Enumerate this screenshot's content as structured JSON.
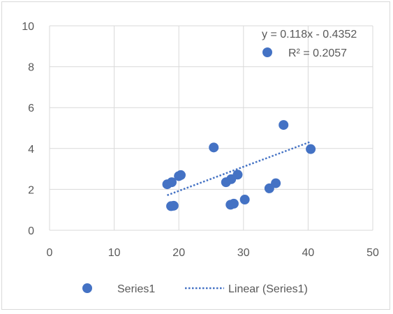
{
  "chart_data": {
    "type": "scatter",
    "title": "",
    "xlabel": "",
    "ylabel": "",
    "xlim": [
      0,
      50
    ],
    "ylim": [
      0,
      10
    ],
    "xticks": [
      0,
      10,
      20,
      30,
      40,
      50
    ],
    "yticks": [
      0,
      2,
      4,
      6,
      8,
      10
    ],
    "grid": true,
    "legend_position": "bottom",
    "series": [
      {
        "name": "Series1",
        "color": "#4472c4",
        "points": [
          {
            "x": 18.2,
            "y": 2.25
          },
          {
            "x": 18.9,
            "y": 2.35
          },
          {
            "x": 18.8,
            "y": 1.18
          },
          {
            "x": 19.2,
            "y": 1.2
          },
          {
            "x": 20.0,
            "y": 2.65
          },
          {
            "x": 20.3,
            "y": 2.7
          },
          {
            "x": 25.4,
            "y": 4.05
          },
          {
            "x": 27.3,
            "y": 2.35
          },
          {
            "x": 28.1,
            "y": 2.5
          },
          {
            "x": 28.0,
            "y": 1.25
          },
          {
            "x": 28.5,
            "y": 1.3
          },
          {
            "x": 29.1,
            "y": 2.72
          },
          {
            "x": 30.2,
            "y": 1.5
          },
          {
            "x": 34.0,
            "y": 2.05
          },
          {
            "x": 35.0,
            "y": 2.3
          },
          {
            "x": 36.2,
            "y": 5.15
          },
          {
            "x": 40.4,
            "y": 3.97
          }
        ]
      }
    ],
    "trendline": {
      "name": "Linear (Series1)",
      "color": "#4472c4",
      "style": "dotted",
      "slope": 0.118,
      "intercept": -0.4352,
      "x_range": [
        18.2,
        40.4
      ],
      "equation_label": "y = 0.118x - 0.4352",
      "r2_label": "R² = 0.2057"
    }
  }
}
